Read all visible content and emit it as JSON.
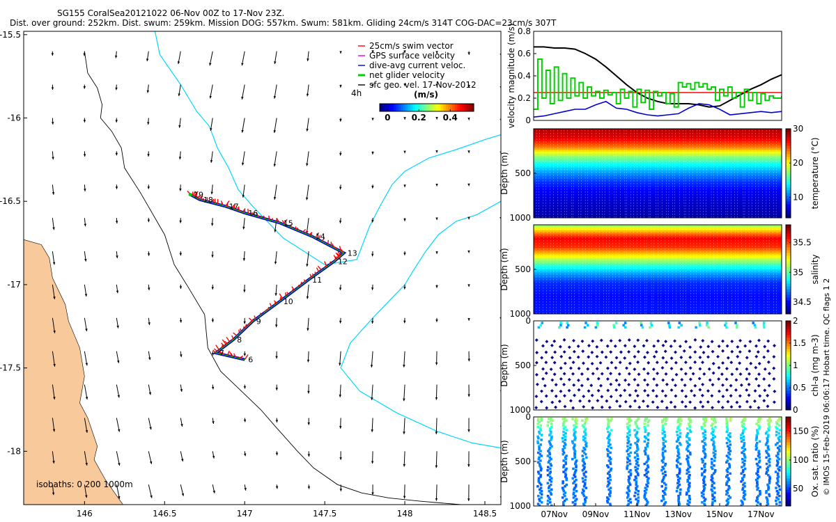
{
  "header": {
    "line1": "SG155 CoralSea20121022 06-Nov 00Z to 17-Nov 23Z.",
    "line2": "Dist. over ground: 252km. Dist. swum: 259km. Mission DOG: 557km. Swum: 581km. Gliding 24cm/s 314T COG-DAC=23cm/s 307T"
  },
  "credit": "© IMOS 15-Feb-2019 06:06:17 Hobart time. QC flags 1  2",
  "colors": {
    "land": "#f8c99a",
    "isobath_shallow": "#00d8ff",
    "isobath_deep": "#000000",
    "swim": "#ff0000",
    "gps": "#e000e0",
    "dac": "#0000cc",
    "net": "#00d000",
    "geo": "#000000",
    "speed_line": "#ff0000"
  },
  "chart_data": [
    {
      "type": "map",
      "name": "glider-track-map",
      "xlim": [
        145.62,
        148.6
      ],
      "ylim": [
        -18.32,
        -15.48
      ],
      "xticks": [
        146,
        146.5,
        147,
        147.5,
        148,
        148.5
      ],
      "xticklabels": [
        "146",
        "146.5",
        "147",
        "147.5",
        "148",
        "148.5"
      ],
      "yticks": [
        -15.5,
        -16,
        -16.5,
        -17,
        -17.5,
        -18
      ],
      "yticklabels": [
        "-15.5",
        "-16",
        "-16.5",
        "-17",
        "-17.5",
        "-18"
      ],
      "isobaths_label": "isobaths: 0   200   1000m",
      "legend": [
        {
          "label": "25cm/s swim vector",
          "key": "swim"
        },
        {
          "label": "GPS surface velocity",
          "key": "gps"
        },
        {
          "label": "dive-avg current veloc.",
          "key": "dac"
        },
        {
          "label": "net glider velocity",
          "key": "net"
        },
        {
          "label": "sfc geo. vel. 17-Nov-2012",
          "key": "geo"
        }
      ],
      "time_step_label": "4h",
      "colorbar": {
        "label": "(m/s)",
        "ticks": [
          0,
          0.2,
          0.4
        ],
        "ticklabels": [
          "0",
          "0.2",
          "0.4"
        ],
        "range": [
          -0.05,
          0.55
        ]
      },
      "track_days": [
        {
          "day": "6",
          "lon": 147.0,
          "lat": -17.45
        },
        {
          "day": "7",
          "lon": 146.82,
          "lat": -17.41
        },
        {
          "day": "8",
          "lon": 146.93,
          "lat": -17.33
        },
        {
          "day": "9",
          "lon": 147.05,
          "lat": -17.22
        },
        {
          "day": "10",
          "lon": 147.22,
          "lat": -17.1
        },
        {
          "day": "11",
          "lon": 147.4,
          "lat": -16.97
        },
        {
          "day": "12",
          "lon": 147.56,
          "lat": -16.86
        },
        {
          "day": "13",
          "lon": 147.62,
          "lat": -16.81
        },
        {
          "day": "14",
          "lon": 147.42,
          "lat": -16.71
        },
        {
          "day": "15",
          "lon": 147.22,
          "lat": -16.63
        },
        {
          "day": "16",
          "lon": 147.0,
          "lat": -16.57
        },
        {
          "day": "17",
          "lon": 146.88,
          "lat": -16.53
        },
        {
          "day": "18",
          "lon": 146.72,
          "lat": -16.49
        },
        {
          "day": "19",
          "lon": 146.66,
          "lat": -16.46
        }
      ],
      "coast_0m": [
        [
          145.62,
          -16.73
        ],
        [
          145.73,
          -16.76
        ],
        [
          145.78,
          -16.84
        ],
        [
          145.8,
          -16.96
        ],
        [
          145.88,
          -17.12
        ],
        [
          145.9,
          -17.22
        ],
        [
          145.97,
          -17.38
        ],
        [
          146.0,
          -17.55
        ],
        [
          145.97,
          -17.71
        ],
        [
          146.02,
          -17.8
        ],
        [
          146.08,
          -17.97
        ],
        [
          146.06,
          -18.05
        ],
        [
          146.13,
          -18.17
        ],
        [
          146.24,
          -18.32
        ],
        [
          145.62,
          -18.32
        ]
      ],
      "isobath_200": [
        [
          146.44,
          -15.48
        ],
        [
          146.47,
          -15.62
        ],
        [
          146.6,
          -15.8
        ],
        [
          146.7,
          -15.96
        ],
        [
          146.78,
          -16.05
        ],
        [
          146.83,
          -16.18
        ],
        [
          146.9,
          -16.3
        ],
        [
          146.96,
          -16.43
        ],
        [
          147.05,
          -16.53
        ],
        [
          147.24,
          -16.72
        ],
        [
          147.5,
          -16.88
        ],
        [
          147.7,
          -16.85
        ],
        [
          147.72,
          -16.8
        ],
        [
          147.78,
          -16.65
        ],
        [
          147.85,
          -16.52
        ],
        [
          147.92,
          -16.4
        ],
        [
          148.0,
          -16.32
        ],
        [
          148.15,
          -16.24
        ],
        [
          148.32,
          -16.19
        ],
        [
          148.5,
          -16.13
        ],
        [
          148.6,
          -16.1
        ]
      ],
      "isobath_200_b": [
        [
          148.6,
          -16.5
        ],
        [
          148.45,
          -16.58
        ],
        [
          148.32,
          -16.62
        ],
        [
          148.21,
          -16.7
        ],
        [
          148.13,
          -16.8
        ],
        [
          148.05,
          -16.92
        ],
        [
          148.0,
          -17.0
        ],
        [
          147.9,
          -17.1
        ],
        [
          147.8,
          -17.2
        ],
        [
          147.66,
          -17.35
        ],
        [
          147.6,
          -17.5
        ],
        [
          147.72,
          -17.64
        ],
        [
          147.95,
          -17.77
        ],
        [
          148.2,
          -17.88
        ],
        [
          148.42,
          -17.95
        ],
        [
          148.6,
          -17.98
        ]
      ],
      "isobath_1000": [
        [
          146.0,
          -15.6
        ],
        [
          146.02,
          -15.73
        ],
        [
          146.08,
          -15.82
        ],
        [
          146.11,
          -15.92
        ],
        [
          146.1,
          -16.0
        ],
        [
          146.17,
          -16.08
        ],
        [
          146.23,
          -16.18
        ],
        [
          146.25,
          -16.3
        ],
        [
          146.35,
          -16.45
        ],
        [
          146.5,
          -16.7
        ],
        [
          146.56,
          -16.88
        ],
        [
          146.65,
          -17.02
        ],
        [
          146.75,
          -17.18
        ],
        [
          146.77,
          -17.38
        ],
        [
          146.85,
          -17.52
        ],
        [
          146.97,
          -17.63
        ],
        [
          147.1,
          -17.75
        ],
        [
          147.2,
          -17.86
        ],
        [
          147.33,
          -18.0
        ],
        [
          147.43,
          -18.1
        ],
        [
          147.58,
          -18.2
        ],
        [
          147.73,
          -18.25
        ],
        [
          147.9,
          -18.28
        ],
        [
          148.1,
          -18.3
        ],
        [
          148.35,
          -18.32
        ]
      ]
    },
    {
      "type": "line",
      "name": "velocity-magnitude",
      "ylabel": "velocity magnitude (m/s)",
      "ylim": [
        0,
        0.8
      ],
      "yticks": [
        0,
        0.2,
        0.4,
        0.6,
        0.8
      ],
      "yticklabels": [
        "0",
        "0.2",
        "0.4",
        "0.6",
        "0.8"
      ],
      "xlim": [
        6,
        18
      ],
      "series": [
        {
          "name": "sfc geo. vel.",
          "key": "geo",
          "x": [
            6,
            6.5,
            7,
            7.5,
            8,
            8.5,
            9,
            9.5,
            10,
            10.5,
            11,
            11.5,
            12,
            12.5,
            13,
            13.5,
            14,
            14.5,
            15,
            15.5,
            16,
            16.5,
            17,
            17.5,
            18
          ],
          "values": [
            0.66,
            0.66,
            0.65,
            0.65,
            0.64,
            0.6,
            0.55,
            0.48,
            0.4,
            0.32,
            0.25,
            0.2,
            0.17,
            0.15,
            0.15,
            0.15,
            0.14,
            0.12,
            0.13,
            0.18,
            0.23,
            0.28,
            0.32,
            0.37,
            0.41
          ]
        },
        {
          "name": "dive-avg current veloc.",
          "key": "dac",
          "x": [
            6,
            6.5,
            7,
            7.5,
            8,
            8.5,
            9,
            9.5,
            10,
            10.5,
            11,
            11.5,
            12,
            12.5,
            13,
            13.5,
            14,
            14.5,
            15,
            15.5,
            16,
            16.5,
            17,
            17.5,
            18
          ],
          "values": [
            0.03,
            0.04,
            0.06,
            0.08,
            0.1,
            0.1,
            0.14,
            0.17,
            0.11,
            0.1,
            0.07,
            0.05,
            0.04,
            0.05,
            0.06,
            0.11,
            0.15,
            0.14,
            0.1,
            0.05,
            0.06,
            0.07,
            0.08,
            0.07,
            0.08
          ]
        },
        {
          "name": "25cm/s swim speed",
          "key": "speed_line",
          "x": [
            6,
            18
          ],
          "values": [
            0.25,
            0.25
          ]
        },
        {
          "name": "net glider velocity",
          "key": "net",
          "x": [
            6,
            6.2,
            6.4,
            6.6,
            6.8,
            7,
            7.2,
            7.4,
            7.6,
            7.8,
            8,
            8.2,
            8.4,
            8.6,
            8.8,
            9,
            9.2,
            9.4,
            9.6,
            9.8,
            10,
            10.2,
            10.4,
            10.6,
            10.8,
            11,
            11.2,
            11.4,
            11.6,
            11.8,
            12,
            12.2,
            12.4,
            12.6,
            12.8,
            13,
            13.2,
            13.4,
            13.6,
            13.8,
            14,
            14.2,
            14.4,
            14.6,
            14.8,
            15,
            15.2,
            15.4,
            15.6,
            15.8,
            16,
            16.2,
            16.4,
            16.6,
            16.8,
            17,
            17.2,
            17.4,
            17.6,
            17.8,
            18
          ],
          "values": [
            0.1,
            0.55,
            0.2,
            0.45,
            0.15,
            0.48,
            0.18,
            0.42,
            0.2,
            0.38,
            0.22,
            0.34,
            0.2,
            0.3,
            0.22,
            0.26,
            0.2,
            0.27,
            0.23,
            0.25,
            0.15,
            0.28,
            0.2,
            0.26,
            0.12,
            0.28,
            0.16,
            0.27,
            0.1,
            0.26,
            0.22,
            0.25,
            0.15,
            0.24,
            0.12,
            0.34,
            0.3,
            0.33,
            0.28,
            0.34,
            0.3,
            0.33,
            0.28,
            0.3,
            0.18,
            0.28,
            0.22,
            0.3,
            0.2,
            0.25,
            0.12,
            0.28,
            0.18,
            0.25,
            0.15,
            0.24,
            0.18,
            0.22,
            0.2,
            0.2,
            0.22
          ]
        }
      ]
    },
    {
      "type": "heatmap",
      "name": "temperature-section",
      "ylabel": "Depth (m)",
      "cbar_label": "temperature (°C)",
      "ylim": [
        1000,
        0
      ],
      "yticks": [
        500,
        1000
      ],
      "yticklabels": [
        "500",
        "1000"
      ],
      "cbar_range": [
        4,
        30
      ],
      "cbar_ticks": [
        10,
        20,
        30
      ],
      "cbar_ticklabels": [
        "10",
        "20",
        "30"
      ],
      "profile": [
        {
          "depth": 0,
          "value": 28.8
        },
        {
          "depth": 100,
          "value": 27.5
        },
        {
          "depth": 200,
          "value": 24
        },
        {
          "depth": 300,
          "value": 18
        },
        {
          "depth": 400,
          "value": 14
        },
        {
          "depth": 500,
          "value": 11
        },
        {
          "depth": 600,
          "value": 8.5
        },
        {
          "depth": 700,
          "value": 7
        },
        {
          "depth": 850,
          "value": 5.8
        },
        {
          "depth": 1000,
          "value": 5
        }
      ]
    },
    {
      "type": "heatmap",
      "name": "salinity-section",
      "ylabel": "Depth (m)",
      "cbar_label": "salinity",
      "ylim": [
        1000,
        0
      ],
      "yticks": [
        500,
        1000
      ],
      "yticklabels": [
        "500",
        "1000"
      ],
      "cbar_range": [
        34.3,
        35.8
      ],
      "cbar_ticks": [
        34.5,
        35,
        35.5
      ],
      "cbar_ticklabels": [
        "34.5",
        "35",
        "35.5"
      ],
      "profile": [
        {
          "depth": 0,
          "value": 35.05
        },
        {
          "depth": 60,
          "value": 35.3
        },
        {
          "depth": 150,
          "value": 35.62
        },
        {
          "depth": 250,
          "value": 35.55
        },
        {
          "depth": 350,
          "value": 35.25
        },
        {
          "depth": 450,
          "value": 34.95
        },
        {
          "depth": 550,
          "value": 34.72
        },
        {
          "depth": 650,
          "value": 34.55
        },
        {
          "depth": 800,
          "value": 34.5
        },
        {
          "depth": 1000,
          "value": 34.52
        }
      ]
    },
    {
      "type": "scatter",
      "name": "chlorophyll-section",
      "ylabel": "Depth (m)",
      "cbar_label": "chl-a (mg m-3)",
      "ylim": [
        1000,
        0
      ],
      "yticks": [
        0,
        500,
        1000
      ],
      "yticklabels": [
        "0",
        "500",
        "1000"
      ],
      "cbar_range": [
        0,
        2
      ],
      "cbar_ticks": [
        0,
        0.5,
        1,
        1.5,
        2
      ],
      "cbar_ticklabels": [
        "0",
        "0.5",
        "1",
        "1.5",
        "2"
      ],
      "profile": [
        {
          "depth": 0,
          "value": 0.45
        },
        {
          "depth": 60,
          "value": 0.5
        },
        {
          "depth": 120,
          "value": 0.3
        },
        {
          "depth": 200,
          "value": 0.05
        },
        {
          "depth": 1000,
          "value": 0.02
        }
      ]
    },
    {
      "type": "scatter",
      "name": "oxygen-section",
      "ylabel": "Depth (m)",
      "cbar_label": "Ox. sat. ratio (%)",
      "ylim": [
        1000,
        0
      ],
      "yticks": [
        0,
        500,
        1000
      ],
      "yticklabels": [
        "0",
        "500",
        "1000"
      ],
      "cbar_range": [
        20,
        175
      ],
      "cbar_ticks": [
        50,
        100,
        150
      ],
      "cbar_ticklabels": [
        "50",
        "100",
        "150"
      ],
      "profile": [
        {
          "depth": 0,
          "value": 100
        },
        {
          "depth": 80,
          "value": 96
        },
        {
          "depth": 150,
          "value": 72
        },
        {
          "depth": 300,
          "value": 62
        },
        {
          "depth": 600,
          "value": 55
        },
        {
          "depth": 1000,
          "value": 58
        }
      ],
      "xticks": [
        7,
        9,
        11,
        13,
        15,
        17
      ],
      "xticklabels": [
        "07Nov",
        "09Nov",
        "11Nov",
        "13Nov",
        "15Nov",
        "17Nov"
      ]
    }
  ]
}
